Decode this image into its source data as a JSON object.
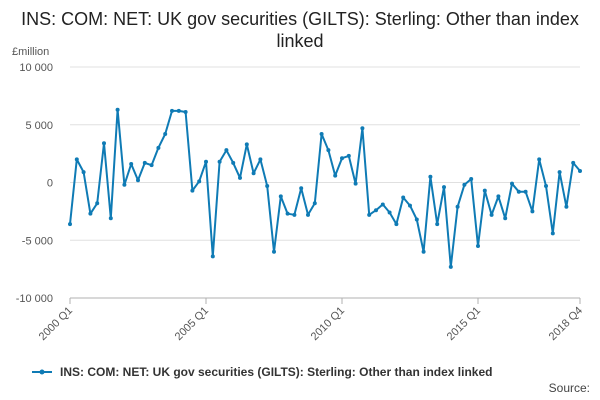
{
  "title": "INS: COM: NET: UK gov securities (GILTS): Sterling: Other than index linked",
  "unit_label": "£million",
  "source_label": "Source:",
  "colors": {
    "series": "#0f7bb5",
    "grid": "#e0e0e0",
    "axis": "#b0b0b0"
  },
  "chart_data": {
    "type": "line",
    "title": "INS: COM: NET: UK gov securities (GILTS): Sterling: Other than index linked",
    "ylabel": "£million",
    "ylim": [
      -10000,
      10000
    ],
    "yticks": [
      {
        "value": 10000,
        "label": "10 000"
      },
      {
        "value": 5000,
        "label": "5 000"
      },
      {
        "value": 0,
        "label": "0"
      },
      {
        "value": -5000,
        "label": "-5 000"
      },
      {
        "value": -10000,
        "label": "-10 000"
      }
    ],
    "xticks": [
      {
        "index": 0,
        "label": "2000 Q1"
      },
      {
        "index": 20,
        "label": "2005 Q1"
      },
      {
        "index": 40,
        "label": "2010 Q1"
      },
      {
        "index": 60,
        "label": "2015 Q1"
      },
      {
        "index": 75,
        "label": "2018 Q4"
      }
    ],
    "grid": true,
    "legend_position": "bottom",
    "series": [
      {
        "name": "INS: COM: NET: UK gov securities (GILTS): Sterling: Other than index linked",
        "x": [
          "2000 Q1",
          "2000 Q2",
          "2000 Q3",
          "2000 Q4",
          "2001 Q1",
          "2001 Q2",
          "2001 Q3",
          "2001 Q4",
          "2002 Q1",
          "2002 Q2",
          "2002 Q3",
          "2002 Q4",
          "2003 Q1",
          "2003 Q2",
          "2003 Q3",
          "2003 Q4",
          "2004 Q1",
          "2004 Q2",
          "2004 Q3",
          "2004 Q4",
          "2005 Q1",
          "2005 Q2",
          "2005 Q3",
          "2005 Q4",
          "2006 Q1",
          "2006 Q2",
          "2006 Q3",
          "2006 Q4",
          "2007 Q1",
          "2007 Q2",
          "2007 Q3",
          "2007 Q4",
          "2008 Q1",
          "2008 Q2",
          "2008 Q3",
          "2008 Q4",
          "2009 Q1",
          "2009 Q2",
          "2009 Q3",
          "2009 Q4",
          "2010 Q1",
          "2010 Q2",
          "2010 Q3",
          "2010 Q4",
          "2011 Q1",
          "2011 Q2",
          "2011 Q3",
          "2011 Q4",
          "2012 Q1",
          "2012 Q2",
          "2012 Q3",
          "2012 Q4",
          "2013 Q1",
          "2013 Q2",
          "2013 Q3",
          "2013 Q4",
          "2014 Q1",
          "2014 Q2",
          "2014 Q3",
          "2014 Q4",
          "2015 Q1",
          "2015 Q2",
          "2015 Q3",
          "2015 Q4",
          "2016 Q1",
          "2016 Q2",
          "2016 Q3",
          "2016 Q4",
          "2017 Q1",
          "2017 Q2",
          "2017 Q3",
          "2017 Q4",
          "2018 Q1",
          "2018 Q2",
          "2018 Q3",
          "2018 Q4"
        ],
        "values": [
          -3600,
          2000,
          900,
          -2700,
          -1800,
          3400,
          -3100,
          6300,
          -200,
          1600,
          200,
          1700,
          1500,
          3000,
          4200,
          6200,
          6200,
          6100,
          -700,
          100,
          1800,
          -6400,
          1800,
          2800,
          1700,
          400,
          3300,
          800,
          2000,
          -300,
          -6000,
          -1200,
          -2700,
          -2800,
          -500,
          -2800,
          -1800,
          4200,
          2800,
          600,
          2100,
          2300,
          -100,
          4700,
          -2800,
          -2400,
          -1900,
          -2600,
          -3600,
          -1300,
          -2000,
          -3200,
          -6000,
          500,
          -3600,
          -400,
          -7300,
          -2100,
          -200,
          300,
          -5500,
          -700,
          -2800,
          -1200,
          -3100,
          -100,
          -800,
          -800,
          -2500,
          2000,
          -300,
          -4400,
          900,
          -2100,
          1700,
          1000
        ]
      }
    ]
  }
}
